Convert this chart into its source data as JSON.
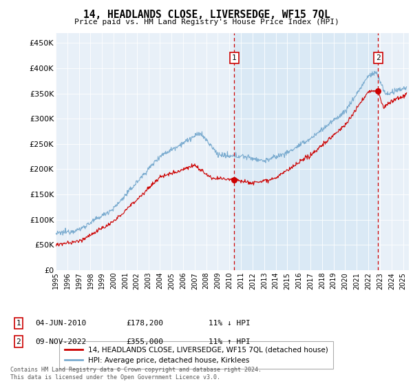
{
  "title": "14, HEADLANDS CLOSE, LIVERSEDGE, WF15 7QL",
  "subtitle": "Price paid vs. HM Land Registry's House Price Index (HPI)",
  "ylim": [
    0,
    470000
  ],
  "yticks": [
    0,
    50000,
    100000,
    150000,
    200000,
    250000,
    300000,
    350000,
    400000,
    450000
  ],
  "ytick_labels": [
    "£0",
    "£50K",
    "£100K",
    "£150K",
    "£200K",
    "£250K",
    "£300K",
    "£350K",
    "£400K",
    "£450K"
  ],
  "xlim_start": 1995.0,
  "xlim_end": 2025.5,
  "sale1_x": 2010.42,
  "sale1_y": 178200,
  "sale1_label": "04-JUN-2010",
  "sale1_price": "£178,200",
  "sale1_hpi": "11% ↓ HPI",
  "sale2_x": 2022.85,
  "sale2_y": 355000,
  "sale2_label": "09-NOV-2022",
  "sale2_price": "£355,000",
  "sale2_hpi": "11% ↑ HPI",
  "legend1_label": "14, HEADLANDS CLOSE, LIVERSEDGE, WF15 7QL (detached house)",
  "legend2_label": "HPI: Average price, detached house, Kirklees",
  "footer": "Contains HM Land Registry data © Crown copyright and database right 2024.\nThis data is licensed under the Open Government Licence v3.0.",
  "line_red": "#cc0000",
  "line_blue": "#7aabcf",
  "shade_blue": "#d8e8f5",
  "background_chart": "#e8f0f8",
  "background_fig": "#ffffff",
  "grid_color": "#ffffff",
  "annotation_box_color": "#cc0000"
}
